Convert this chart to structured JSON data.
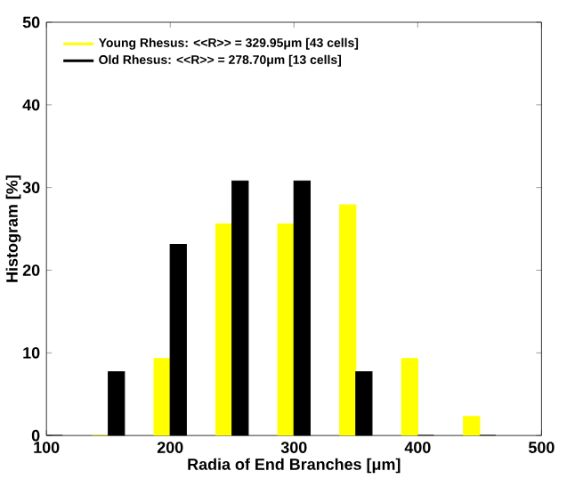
{
  "chart_data": {
    "type": "bar",
    "xlabel": "Radia of End Branches [μm]",
    "ylabel": "Histogram [%]",
    "x": [
      100,
      150,
      200,
      250,
      300,
      350,
      400,
      450
    ],
    "series": [
      {
        "name": "Young Rhesus: <<R>> = 329.95μm [43 cells]",
        "color": "#ffff00",
        "values": [
          0,
          0,
          9.3,
          25.6,
          25.6,
          27.9,
          9.3,
          2.3
        ]
      },
      {
        "name": "Old Rhesus: <<R>> = 278.70μm [13 cells]",
        "color": "#000000",
        "values": [
          0,
          7.7,
          23.1,
          30.8,
          30.8,
          7.7,
          0,
          0
        ]
      }
    ],
    "xlim": [
      100,
      500
    ],
    "xticks": [
      100,
      200,
      300,
      400,
      500
    ],
    "ylim": [
      0,
      50
    ],
    "yticks": [
      0,
      10,
      20,
      30,
      40,
      50
    ],
    "grid": false,
    "legend": "top left"
  }
}
